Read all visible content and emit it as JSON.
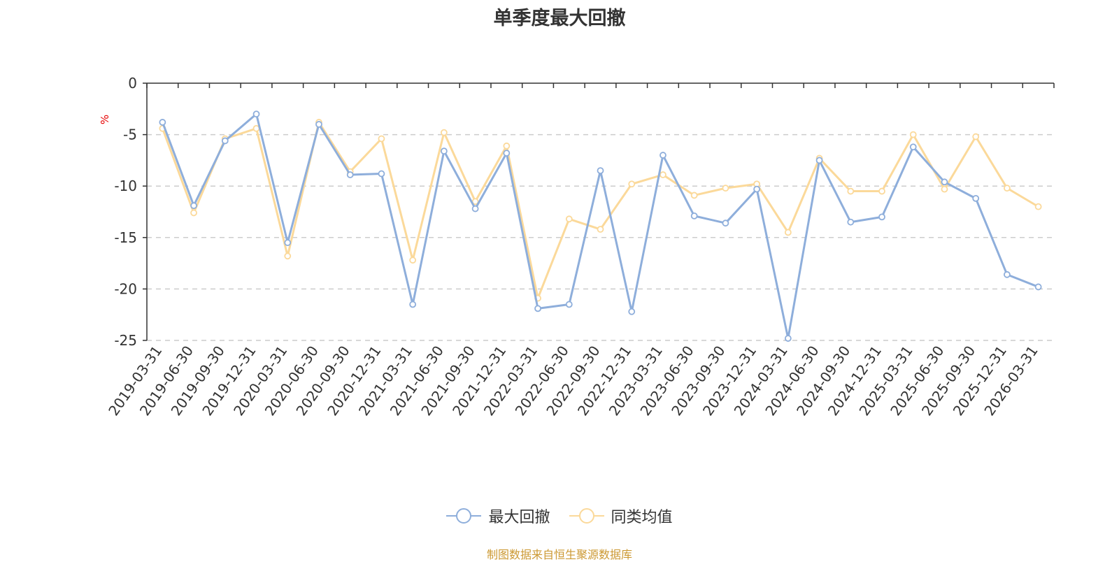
{
  "title": "单季度最大回撤",
  "source_note": "制图数据来自恒生聚源数据库",
  "colors": {
    "series1": "#8eaedb",
    "series2": "#fbd99a",
    "unit": "#e60000",
    "source": "#cc9933"
  },
  "chart_data": {
    "type": "line",
    "title": "单季度最大回撤",
    "ylabel": "%",
    "xlabel": "",
    "ylim": [
      -25,
      0
    ],
    "yticks": [
      0,
      -5,
      -10,
      -15,
      -20,
      -25
    ],
    "grid": "horizontal dashed",
    "legend_position": "bottom",
    "x": [
      "2019-03-31",
      "2019-06-30",
      "2019-09-30",
      "2019-12-31",
      "2020-03-31",
      "2020-06-30",
      "2020-09-30",
      "2020-12-31",
      "2021-03-31",
      "2021-06-30",
      "2021-09-30",
      "2021-12-31",
      "2022-03-31",
      "2022-06-30",
      "2022-09-30",
      "2022-12-31",
      "2023-03-31",
      "2023-06-30",
      "2023-09-30",
      "2023-12-31",
      "2024-03-31",
      "2024-06-30",
      "2024-09-30",
      "2024-12-31",
      "2025-03-31",
      "2025-06-30",
      "2025-09-30",
      "2025-12-31",
      "2026-03-31"
    ],
    "series": [
      {
        "name": "最大回撤",
        "color": "#8eaedb",
        "values": [
          -3.8,
          -11.9,
          -5.6,
          -3.0,
          -15.5,
          -4.0,
          -8.9,
          -8.8,
          -21.5,
          -6.6,
          -12.2,
          -6.8,
          -21.9,
          -21.5,
          -8.5,
          -22.2,
          -7.0,
          -12.9,
          -13.6,
          -10.3,
          -24.8,
          -7.5,
          -13.5,
          -13.0,
          -6.2,
          -9.6,
          -11.2,
          -18.6,
          -19.8
        ]
      },
      {
        "name": "同类均值",
        "color": "#fbd99a",
        "values": [
          -4.4,
          -12.6,
          -5.4,
          -4.4,
          -16.8,
          -3.8,
          -8.6,
          -5.4,
          -17.2,
          -4.8,
          -11.5,
          -6.1,
          -20.9,
          -13.2,
          -14.2,
          -9.8,
          -8.9,
          -10.9,
          -10.2,
          -9.8,
          -14.5,
          -7.3,
          -10.5,
          -10.5,
          -5.0,
          -10.3,
          -5.2,
          -10.2,
          -12.0
        ]
      }
    ]
  }
}
